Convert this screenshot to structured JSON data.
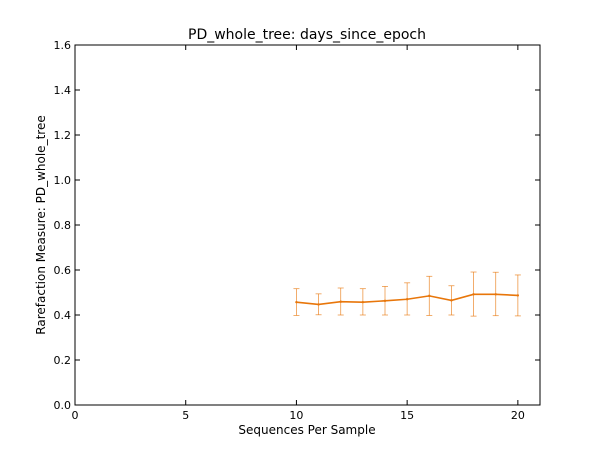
{
  "chart_data": {
    "type": "line",
    "title": "PD_whole_tree: days_since_epoch",
    "xlabel": "Sequences Per Sample",
    "ylabel": "Rarefaction Measure: PD_whole_tree",
    "xlim": [
      0,
      21
    ],
    "ylim": [
      0,
      1.6
    ],
    "xticks": [
      0,
      5,
      10,
      15,
      20
    ],
    "xtick_labels": [
      "0",
      "5",
      "10",
      "15",
      "20"
    ],
    "yticks": [
      0.0,
      0.2,
      0.4,
      0.6,
      0.8,
      1.0,
      1.2,
      1.4,
      1.6
    ],
    "ytick_labels": [
      "0.0",
      "0.2",
      "0.4",
      "0.6",
      "0.8",
      "1.0",
      "1.2",
      "1.4",
      "1.6"
    ],
    "grid": false,
    "series": [
      {
        "color": "#e8760a",
        "x": [
          10,
          11,
          12,
          13,
          14,
          15,
          16,
          17,
          18,
          19,
          20
        ],
        "y": [
          0.457,
          0.447,
          0.459,
          0.457,
          0.463,
          0.47,
          0.485,
          0.465,
          0.492,
          0.492,
          0.487
        ],
        "error_low": [
          0.398,
          0.401,
          0.4,
          0.4,
          0.4,
          0.4,
          0.398,
          0.4,
          0.395,
          0.397,
          0.396
        ],
        "error_high": [
          0.517,
          0.494,
          0.52,
          0.517,
          0.527,
          0.543,
          0.572,
          0.53,
          0.591,
          0.59,
          0.578
        ]
      }
    ]
  }
}
